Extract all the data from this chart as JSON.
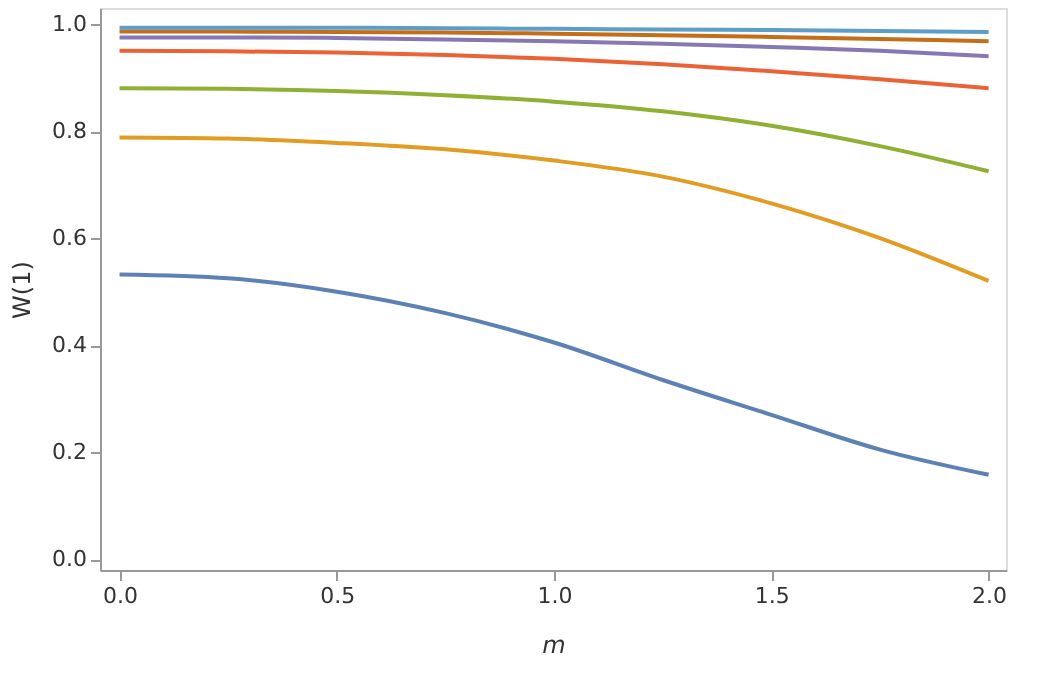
{
  "chart_data": {
    "type": "line",
    "xlabel": "m",
    "ylabel": "W(1)",
    "x": [
      0,
      0.25,
      0.5,
      0.75,
      1.0,
      1.25,
      1.5,
      1.75,
      2.0
    ],
    "xlim": [
      -0.045,
      2.04
    ],
    "ylim": [
      -0.02,
      1.03
    ],
    "xticks": [
      {
        "value": 0,
        "label": "0.0"
      },
      0.5,
      {
        "value": 1,
        "label": "1.0"
      },
      1.5,
      {
        "value": 2,
        "label": "2.0"
      }
    ],
    "yticks": [
      {
        "value": 0,
        "label": "0.0"
      },
      0.2,
      0.4,
      0.6,
      0.8,
      {
        "value": 1,
        "label": "1.0"
      }
    ],
    "grid": false,
    "marker": "none",
    "line_style": "solid",
    "series": [
      {
        "color": "#5e81b5",
        "values": [
          0.532,
          0.525,
          0.5,
          0.46,
          0.405,
          0.335,
          0.27,
          0.205,
          0.158
        ]
      },
      {
        "color": "#e19c24",
        "values": [
          0.788,
          0.786,
          0.778,
          0.766,
          0.745,
          0.715,
          0.665,
          0.6,
          0.52
        ]
      },
      {
        "color": "#8fb032",
        "values": [
          0.88,
          0.879,
          0.875,
          0.867,
          0.855,
          0.837,
          0.81,
          0.772,
          0.725
        ]
      },
      {
        "color": "#eb6235",
        "values": [
          0.95,
          0.949,
          0.947,
          0.942,
          0.935,
          0.925,
          0.912,
          0.897,
          0.88
        ]
      },
      {
        "color": "#8778b3",
        "values": [
          0.975,
          0.975,
          0.974,
          0.971,
          0.968,
          0.963,
          0.957,
          0.95,
          0.94
        ]
      },
      {
        "color": "#c56e1a",
        "values": [
          0.986,
          0.986,
          0.985,
          0.984,
          0.982,
          0.979,
          0.976,
          0.972,
          0.968
        ]
      },
      {
        "color": "#5d9ec7",
        "values": [
          0.993,
          0.993,
          0.993,
          0.992,
          0.991,
          0.99,
          0.989,
          0.987,
          0.985
        ]
      }
    ]
  }
}
